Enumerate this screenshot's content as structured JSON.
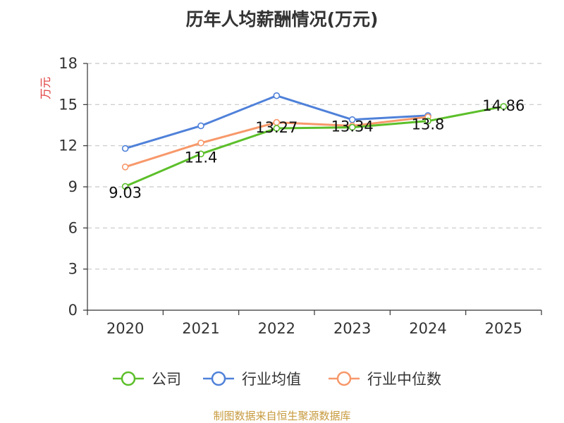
{
  "chart_data": {
    "type": "line",
    "title": "历年人均薪酬情况(万元)",
    "ylabel": "万元",
    "xlabel": "",
    "categories": [
      "2020",
      "2021",
      "2022",
      "2023",
      "2024",
      "2025"
    ],
    "ylim": [
      0,
      18
    ],
    "yticks": [
      0,
      3,
      6,
      9,
      12,
      15,
      18
    ],
    "grid": true,
    "legend_position": "bottom",
    "series": [
      {
        "name": "公司",
        "color": "#5cbf2a",
        "values": [
          9.03,
          11.4,
          13.27,
          13.34,
          13.8,
          14.86
        ],
        "labels": [
          "9.03",
          "11.4",
          "13.27",
          "13.34",
          "13.8",
          "14.86"
        ]
      },
      {
        "name": "行业均值",
        "color": "#4f81d9",
        "values": [
          11.8,
          13.45,
          15.65,
          13.9,
          14.2,
          null
        ]
      },
      {
        "name": "行业中位数",
        "color": "#f7986a",
        "values": [
          10.45,
          12.2,
          13.7,
          13.45,
          14.1,
          null
        ]
      }
    ]
  },
  "source": "制图数据来自恒生聚源数据库"
}
